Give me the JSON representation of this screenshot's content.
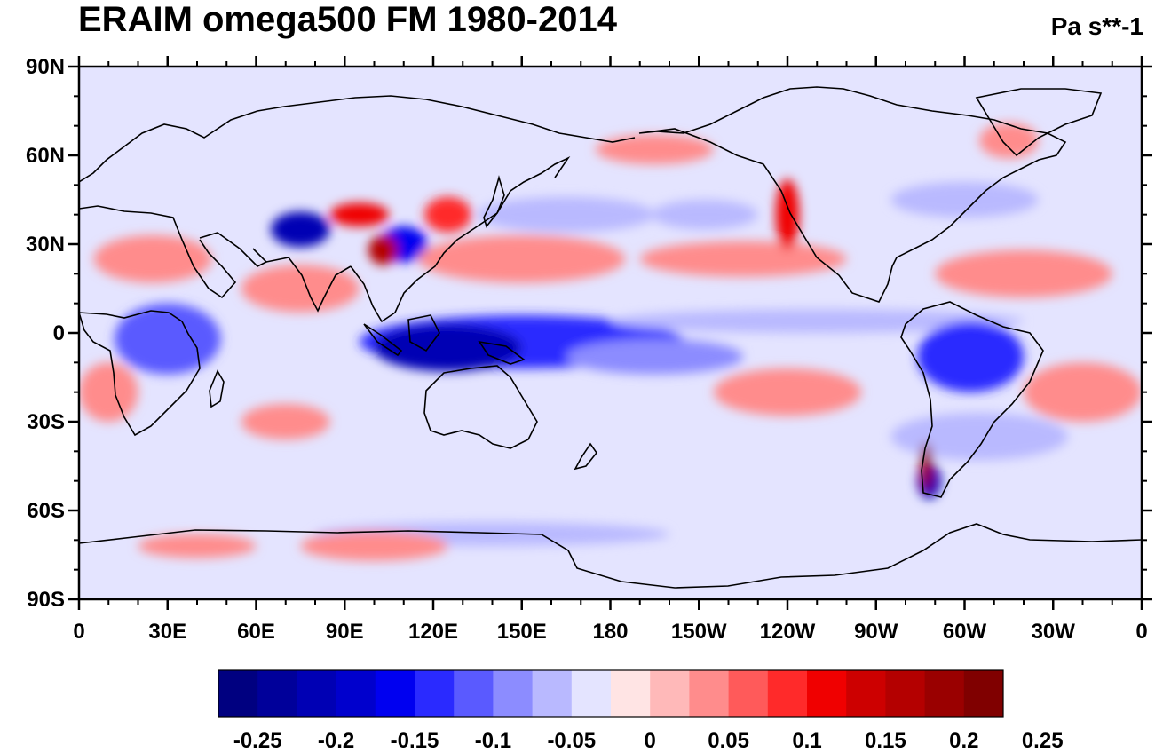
{
  "map": {
    "title": "ERAIM omega500 FM 1980-2014",
    "units": "Pa s**-1",
    "projection": "cylindrical-equidistant",
    "center_longitude": 180,
    "lat_range": [
      -90,
      90
    ],
    "lon_range": [
      0,
      360
    ],
    "lat_ticks": [
      {
        "value": 90,
        "label": "90N"
      },
      {
        "value": 60,
        "label": "60N"
      },
      {
        "value": 30,
        "label": "30N"
      },
      {
        "value": 0,
        "label": "0"
      },
      {
        "value": -30,
        "label": "30S"
      },
      {
        "value": -60,
        "label": "60S"
      },
      {
        "value": -90,
        "label": "90S"
      }
    ],
    "lon_ticks": [
      {
        "value": 0,
        "label": "0"
      },
      {
        "value": 30,
        "label": "30E"
      },
      {
        "value": 60,
        "label": "60E"
      },
      {
        "value": 90,
        "label": "90E"
      },
      {
        "value": 120,
        "label": "120E"
      },
      {
        "value": 150,
        "label": "150E"
      },
      {
        "value": 180,
        "label": "180"
      },
      {
        "value": 210,
        "label": "150W"
      },
      {
        "value": 240,
        "label": "120W"
      },
      {
        "value": 270,
        "label": "90W"
      },
      {
        "value": 300,
        "label": "60W"
      },
      {
        "value": 330,
        "label": "30W"
      },
      {
        "value": 360,
        "label": "0"
      }
    ],
    "colorbar": {
      "colors": [
        "#000080",
        "#00009a",
        "#0000b4",
        "#0000cd",
        "#0000f0",
        "#2a2aff",
        "#5a5aff",
        "#8c8cff",
        "#b9b9ff",
        "#e4e4ff",
        "#ffe4e4",
        "#ffb9b9",
        "#ff8c8c",
        "#ff5a5a",
        "#ff2a2a",
        "#f00000",
        "#cd0000",
        "#b40000",
        "#9a0000",
        "#800000"
      ],
      "labels": [
        "-0.25",
        "-0.2",
        "-0.15",
        "-0.1",
        "-0.05",
        "0",
        "0.05",
        "0.1",
        "0.15",
        "0.2",
        "0.25"
      ]
    },
    "regions": [
      {
        "lon": 30,
        "lat": -2,
        "rx": 18,
        "ry": 12,
        "value": -0.08
      },
      {
        "lon": 150,
        "lat": -3,
        "rx": 55,
        "ry": 9,
        "value": -0.12
      },
      {
        "lon": 125,
        "lat": -5,
        "rx": 25,
        "ry": 8,
        "value": -0.18
      },
      {
        "lon": 195,
        "lat": -8,
        "rx": 30,
        "ry": 6,
        "value": -0.07
      },
      {
        "lon": 250,
        "lat": 4,
        "rx": 70,
        "ry": 4,
        "value": -0.04
      },
      {
        "lon": 302,
        "lat": -8,
        "rx": 18,
        "ry": 12,
        "value": -0.12
      },
      {
        "lon": 165,
        "lat": 40,
        "rx": 30,
        "ry": 6,
        "value": -0.05
      },
      {
        "lon": 212,
        "lat": 40,
        "rx": 18,
        "ry": 5,
        "value": -0.05
      },
      {
        "lon": 300,
        "lat": 45,
        "rx": 25,
        "ry": 6,
        "value": -0.05
      },
      {
        "lon": 305,
        "lat": -35,
        "rx": 30,
        "ry": 8,
        "value": -0.04
      },
      {
        "lon": 75,
        "lat": 35,
        "rx": 10,
        "ry": 6,
        "value": -0.2
      },
      {
        "lon": 110,
        "lat": 30,
        "rx": 8,
        "ry": 6,
        "value": -0.15
      },
      {
        "lon": 288,
        "lat": -50,
        "rx": 4,
        "ry": 6,
        "value": -0.2
      },
      {
        "lon": 140,
        "lat": -68,
        "rx": 60,
        "ry": 4,
        "value": -0.05
      },
      {
        "lon": 150,
        "lat": 25,
        "rx": 35,
        "ry": 8,
        "value": 0.06
      },
      {
        "lon": 225,
        "lat": 25,
        "rx": 35,
        "ry": 6,
        "value": 0.06
      },
      {
        "lon": 320,
        "lat": 20,
        "rx": 30,
        "ry": 8,
        "value": 0.06
      },
      {
        "lon": 25,
        "lat": 25,
        "rx": 20,
        "ry": 8,
        "value": 0.06
      },
      {
        "lon": 75,
        "lat": 15,
        "rx": 20,
        "ry": 8,
        "value": 0.05
      },
      {
        "lon": 240,
        "lat": -20,
        "rx": 25,
        "ry": 8,
        "value": 0.05
      },
      {
        "lon": 340,
        "lat": -20,
        "rx": 20,
        "ry": 10,
        "value": 0.06
      },
      {
        "lon": 10,
        "lat": -20,
        "rx": 10,
        "ry": 10,
        "value": 0.06
      },
      {
        "lon": 70,
        "lat": -30,
        "rx": 15,
        "ry": 6,
        "value": 0.05
      },
      {
        "lon": 95,
        "lat": 40,
        "rx": 10,
        "ry": 4,
        "value": 0.15
      },
      {
        "lon": 103,
        "lat": 28,
        "rx": 5,
        "ry": 5,
        "value": 0.18
      },
      {
        "lon": 125,
        "lat": 40,
        "rx": 8,
        "ry": 6,
        "value": 0.12
      },
      {
        "lon": 240,
        "lat": 40,
        "rx": 4,
        "ry": 12,
        "value": 0.15
      },
      {
        "lon": 287,
        "lat": -45,
        "rx": 2,
        "ry": 8,
        "value": 0.2
      },
      {
        "lon": 100,
        "lat": -72,
        "rx": 25,
        "ry": 5,
        "value": 0.06
      },
      {
        "lon": 40,
        "lat": -72,
        "rx": 20,
        "ry": 4,
        "value": 0.05
      },
      {
        "lon": 195,
        "lat": 62,
        "rx": 20,
        "ry": 5,
        "value": 0.05
      },
      {
        "lon": 315,
        "lat": 65,
        "rx": 10,
        "ry": 6,
        "value": 0.07
      }
    ]
  }
}
